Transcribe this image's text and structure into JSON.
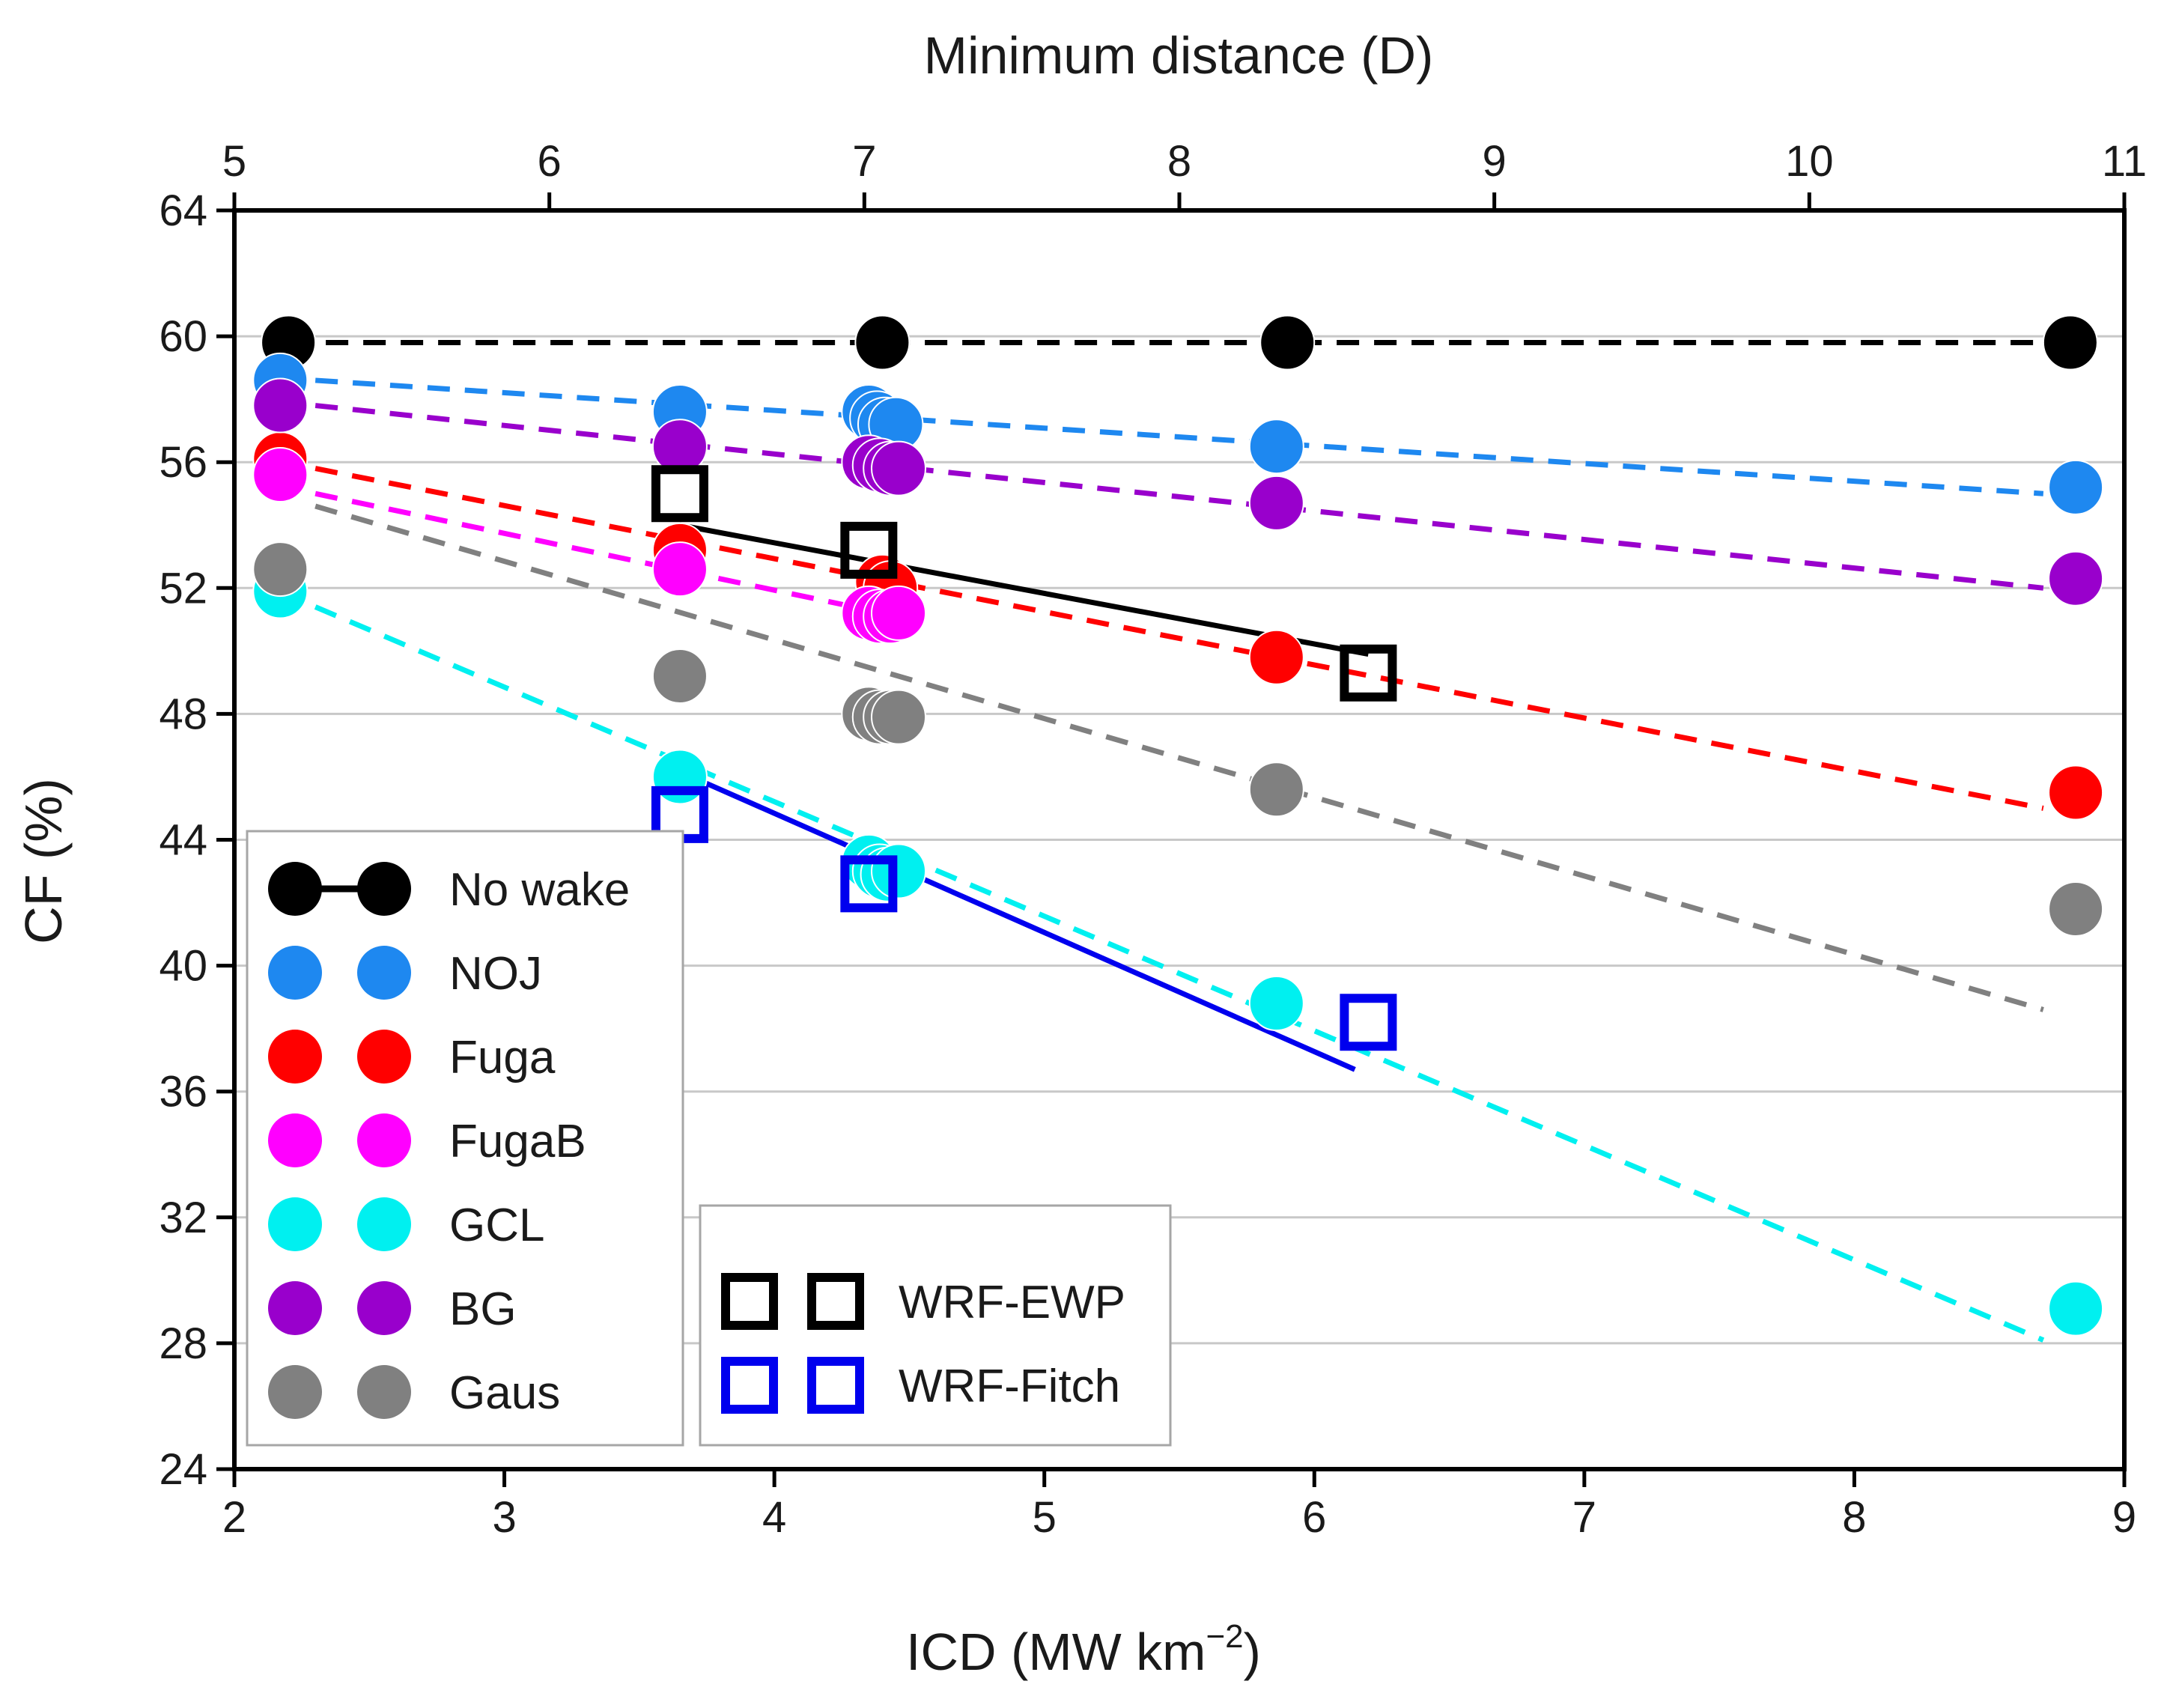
{
  "chart_data": {
    "type": "scatter",
    "xlabel": "ICD (MW km",
    "xlabel_sup": "−2",
    "xlabel_end": ")",
    "ylabel": "CF (%)",
    "x2label": "Minimum distance (D)",
    "xlim": [
      2,
      9
    ],
    "ylim": [
      24,
      64
    ],
    "x2lim": [
      5,
      11
    ],
    "xticks": [
      "2",
      "3",
      "4",
      "5",
      "6",
      "7",
      "8",
      "9"
    ],
    "yticks": [
      "24",
      "28",
      "32",
      "36",
      "40",
      "44",
      "48",
      "52",
      "56",
      "60",
      "64"
    ],
    "x2ticks": [
      "5",
      "6",
      "7",
      "8",
      "9",
      "10",
      "11"
    ],
    "grid": "horizontal",
    "series": [
      {
        "name": "No wake",
        "marker": "circle",
        "line": "dashed",
        "legend_line": true,
        "color": "#000000",
        "x": [
          2.2,
          4.4,
          5.9,
          8.8
        ],
        "y": [
          59.8,
          59.8,
          59.8,
          59.8
        ],
        "fit": {
          "x": [
            2.2,
            8.8
          ],
          "y": [
            59.8,
            59.8
          ]
        }
      },
      {
        "name": "NOJ",
        "marker": "circle",
        "line": "dashed",
        "legend_line": false,
        "color": "#1e88f0",
        "x": [
          2.17,
          3.65,
          4.35,
          4.38,
          4.41,
          4.45,
          5.86,
          8.82
        ],
        "y": [
          58.6,
          57.6,
          57.6,
          57.4,
          57.2,
          57.2,
          56.5,
          55.2
        ],
        "fit": {
          "x": [
            2.3,
            8.7
          ],
          "y": [
            58.6,
            55.0
          ]
        }
      },
      {
        "name": "Fuga",
        "marker": "circle",
        "line": "dashed",
        "legend_line": false,
        "color": "#ff0000",
        "x": [
          2.17,
          3.65,
          4.4,
          4.43,
          5.86,
          8.82
        ],
        "y": [
          56.1,
          53.2,
          52.2,
          52.0,
          49.8,
          45.5
        ],
        "fit": {
          "x": [
            2.3,
            8.7
          ],
          "y": [
            55.8,
            45.0
          ]
        }
      },
      {
        "name": "FugaB",
        "marker": "circle",
        "line": "dashed",
        "legend_line": false,
        "color": "#ff00ff",
        "x": [
          2.17,
          3.65,
          4.35,
          4.39,
          4.43,
          4.46
        ],
        "y": [
          55.6,
          52.6,
          51.2,
          51.1,
          51.1,
          51.2
        ],
        "fit": {
          "x": [
            2.3,
            4.35
          ],
          "y": [
            55.0,
            51.3
          ]
        }
      },
      {
        "name": "GCL",
        "marker": "circle",
        "line": "dashed",
        "legend_line": false,
        "color": "#00f0f0",
        "x": [
          2.17,
          3.65,
          4.35,
          4.39,
          4.42,
          4.46,
          5.86,
          8.82
        ],
        "y": [
          51.9,
          46.0,
          43.3,
          43.0,
          42.9,
          43.0,
          38.8,
          29.1
        ],
        "fit": {
          "x": [
            2.3,
            8.7
          ],
          "y": [
            51.4,
            28.1
          ]
        }
      },
      {
        "name": "BG",
        "marker": "circle",
        "line": "dashed",
        "legend_line": false,
        "color": "#9900cc",
        "x": [
          2.17,
          3.65,
          4.35,
          4.39,
          4.43,
          4.46,
          5.86,
          8.82
        ],
        "y": [
          57.8,
          56.5,
          56.0,
          55.9,
          55.8,
          55.8,
          54.7,
          52.3
        ],
        "fit": {
          "x": [
            2.3,
            8.7
          ],
          "y": [
            57.8,
            52.0
          ]
        }
      },
      {
        "name": "Gaus",
        "marker": "circle",
        "line": "dashed",
        "legend_line": false,
        "color": "#808080",
        "x": [
          2.17,
          3.65,
          4.35,
          4.39,
          4.43,
          4.46,
          5.86,
          8.82
        ],
        "y": [
          52.6,
          49.2,
          48.0,
          47.9,
          47.9,
          47.9,
          45.6,
          41.8
        ],
        "fit": {
          "x": [
            2.3,
            8.7
          ],
          "y": [
            54.6,
            38.6
          ]
        }
      },
      {
        "name": "WRF-EWP",
        "marker": "square",
        "line": "solid",
        "legend_line": false,
        "color": "#000000",
        "x": [
          3.65,
          4.35,
          6.2
        ],
        "y": [
          55.0,
          53.2,
          49.3
        ],
        "fit": {
          "x": [
            3.65,
            6.2
          ],
          "y": [
            54.0,
            49.9
          ]
        }
      },
      {
        "name": "WRF-Fitch",
        "marker": "square",
        "line": "solid",
        "legend_line": false,
        "color": "#0000ee",
        "x": [
          3.65,
          4.35,
          6.2
        ],
        "y": [
          44.8,
          42.6,
          38.2
        ],
        "fit": {
          "x": [
            3.72,
            6.15
          ],
          "y": [
            45.9,
            36.7
          ]
        }
      }
    ],
    "legend": [
      {
        "columns": [
          "No wake",
          "NOJ",
          "Fuga",
          "FugaB",
          "GCL",
          "BG",
          "Gaus"
        ],
        "placement": "lower-left"
      },
      {
        "columns": [
          "WRF-EWP",
          "WRF-Fitch"
        ],
        "placement": "lower-center"
      }
    ]
  }
}
